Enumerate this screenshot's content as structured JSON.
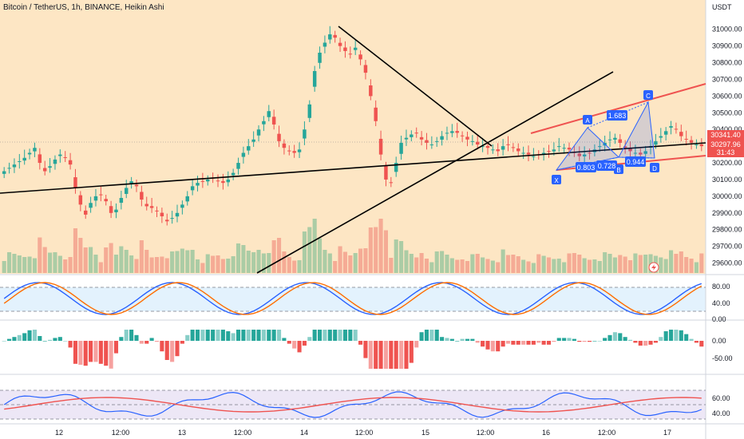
{
  "header": {
    "title": "Bitcoin / TetherUS, 1h, BINANCE, Heikin Ashi"
  },
  "price_axis": {
    "currency": "USDT",
    "ticks": [
      "31000.00",
      "30900.00",
      "30800.00",
      "30700.00",
      "30600.00",
      "30500.00",
      "30400.00",
      "30300.00",
      "30200.00",
      "30100.00",
      "30000.00",
      "29900.00",
      "29800.00",
      "29700.00",
      "29600.00"
    ],
    "tick_values": [
      31000,
      30900,
      30800,
      30700,
      30600,
      30500,
      30400,
      30300,
      30200,
      30100,
      30000,
      29900,
      29800,
      29700,
      29600
    ],
    "current_price": "30341.40",
    "second_price": "30297.96",
    "countdown": "31:43"
  },
  "time_axis": {
    "labels": [
      "12",
      "12:00",
      "13",
      "12:00",
      "14",
      "12:00",
      "15",
      "12:00",
      "16",
      "12:00",
      "17"
    ]
  },
  "harmonic": {
    "points": [
      "X",
      "A",
      "B",
      "C",
      "D"
    ],
    "ratios": [
      "1.683",
      "0.803",
      "0.728",
      "0.944"
    ]
  },
  "stoch": {
    "ticks": [
      "80.00",
      "40.00",
      "0.00"
    ]
  },
  "macd": {
    "ticks": [
      "0.00",
      "-50.00"
    ]
  },
  "rsi": {
    "ticks": [
      "60.00",
      "40.00"
    ]
  },
  "colors": {
    "up": "#26a69a",
    "down": "#ef5350",
    "bg_main": "#fde6c4",
    "line_blue": "#2962ff",
    "line_orange": "#ff6d00",
    "harmonic": "#2962ff"
  },
  "chart_data": {
    "type": "candlestick",
    "title": "Bitcoin / TetherUS, 1h, BINANCE, Heikin Ashi",
    "ylim": [
      29550,
      31080
    ],
    "bar_count": 138,
    "closes": [
      30150,
      30170,
      30190,
      30210,
      30230,
      30260,
      30290,
      30200,
      30150,
      30180,
      30220,
      30250,
      30230,
      30190,
      30050,
      29950,
      29890,
      29960,
      30000,
      30010,
      29970,
      29900,
      29920,
      29990,
      30050,
      30090,
      30060,
      29980,
      29940,
      29930,
      29910,
      29880,
      29850,
      29870,
      29900,
      29950,
      30000,
      30060,
      30080,
      30090,
      30100,
      30110,
      30090,
      30080,
      30100,
      30140,
      30200,
      30260,
      30300,
      30340,
      30400,
      30450,
      30510,
      30430,
      30330,
      30290,
      30270,
      30260,
      30280,
      30400,
      30550,
      30750,
      30860,
      30920,
      30970,
      30950,
      30900,
      30870,
      30850,
      30890,
      30820,
      30740,
      30600,
      30450,
      30250,
      30100,
      30080,
      30200,
      30320,
      30350,
      30370,
      30380,
      30340,
      30320,
      30310,
      30330,
      30360,
      30380,
      30390,
      30380,
      30360,
      30340,
      30330,
      30310,
      30300,
      30290,
      30280,
      30270,
      30300,
      30310,
      30290,
      30270,
      30260,
      30250,
      30240,
      30250,
      30260,
      30270,
      30280,
      30300,
      30290,
      30280,
      30260,
      30240,
      30250,
      30260,
      30280,
      30300,
      30320,
      30340,
      30350,
      30320,
      30290,
      30270,
      30260,
      30250,
      30270,
      30300,
      30330,
      30360,
      30390,
      30420,
      30400,
      30360,
      30340,
      30320,
      30310,
      30300
    ],
    "stoch_k_range": [
      0,
      100
    ],
    "macd_range": [
      -80,
      20
    ],
    "rsi_range": [
      30,
      70
    ]
  }
}
